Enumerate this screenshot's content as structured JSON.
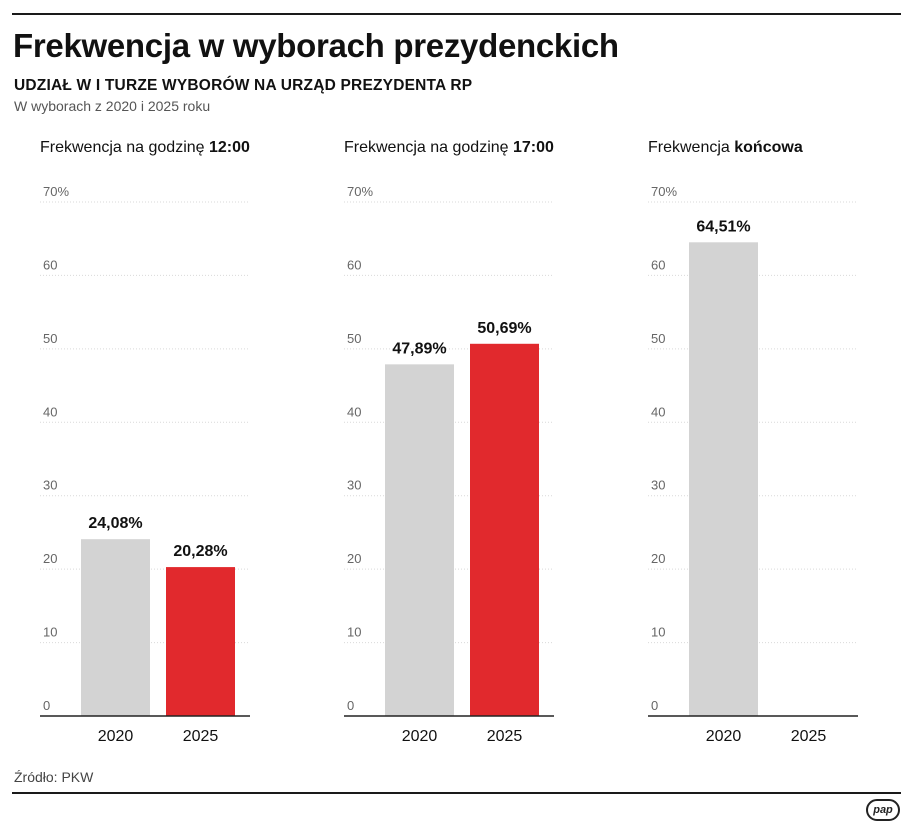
{
  "header": {
    "title": "Frekwencja w wyborach prezydenckich",
    "subtitle": "UDZIAŁ W I TURZE WYBORÓW NA URZĄD PREZYDENTA RP",
    "note": "W wyborach z 2020 i 2025 roku"
  },
  "footer": {
    "source": "Źródło: PKW",
    "logo_text": "pap"
  },
  "colors": {
    "bar_2020": "#d3d3d3",
    "bar_2025": "#e1292d",
    "grid": "#d9d9d9",
    "axis": "#222222",
    "tick_text": "#666666"
  },
  "chart_data": [
    {
      "type": "bar",
      "title_prefix": "Frekwencja na godzinę ",
      "title_bold": "12:00",
      "categories": [
        "2020",
        "2025"
      ],
      "values": [
        24.08,
        20.28
      ],
      "value_labels": [
        "24,08%",
        "20,28%"
      ],
      "yticks": [
        "0",
        "10",
        "20",
        "30",
        "40",
        "50",
        "60",
        "70%"
      ],
      "ylim": [
        0,
        70
      ],
      "grid": true
    },
    {
      "type": "bar",
      "title_prefix": "Frekwencja na godzinę ",
      "title_bold": "17:00",
      "categories": [
        "2020",
        "2025"
      ],
      "values": [
        47.89,
        50.69
      ],
      "value_labels": [
        "47,89%",
        "50,69%"
      ],
      "yticks": [
        "0",
        "10",
        "20",
        "30",
        "40",
        "50",
        "60",
        "70%"
      ],
      "ylim": [
        0,
        70
      ],
      "grid": true
    },
    {
      "type": "bar",
      "title_prefix": "Frekwencja ",
      "title_bold": "końcowa",
      "categories": [
        "2020",
        "2025"
      ],
      "values": [
        64.51,
        null
      ],
      "value_labels": [
        "64,51%",
        ""
      ],
      "yticks": [
        "0",
        "10",
        "20",
        "30",
        "40",
        "50",
        "60",
        "70%"
      ],
      "ylim": [
        0,
        70
      ],
      "grid": true
    }
  ]
}
